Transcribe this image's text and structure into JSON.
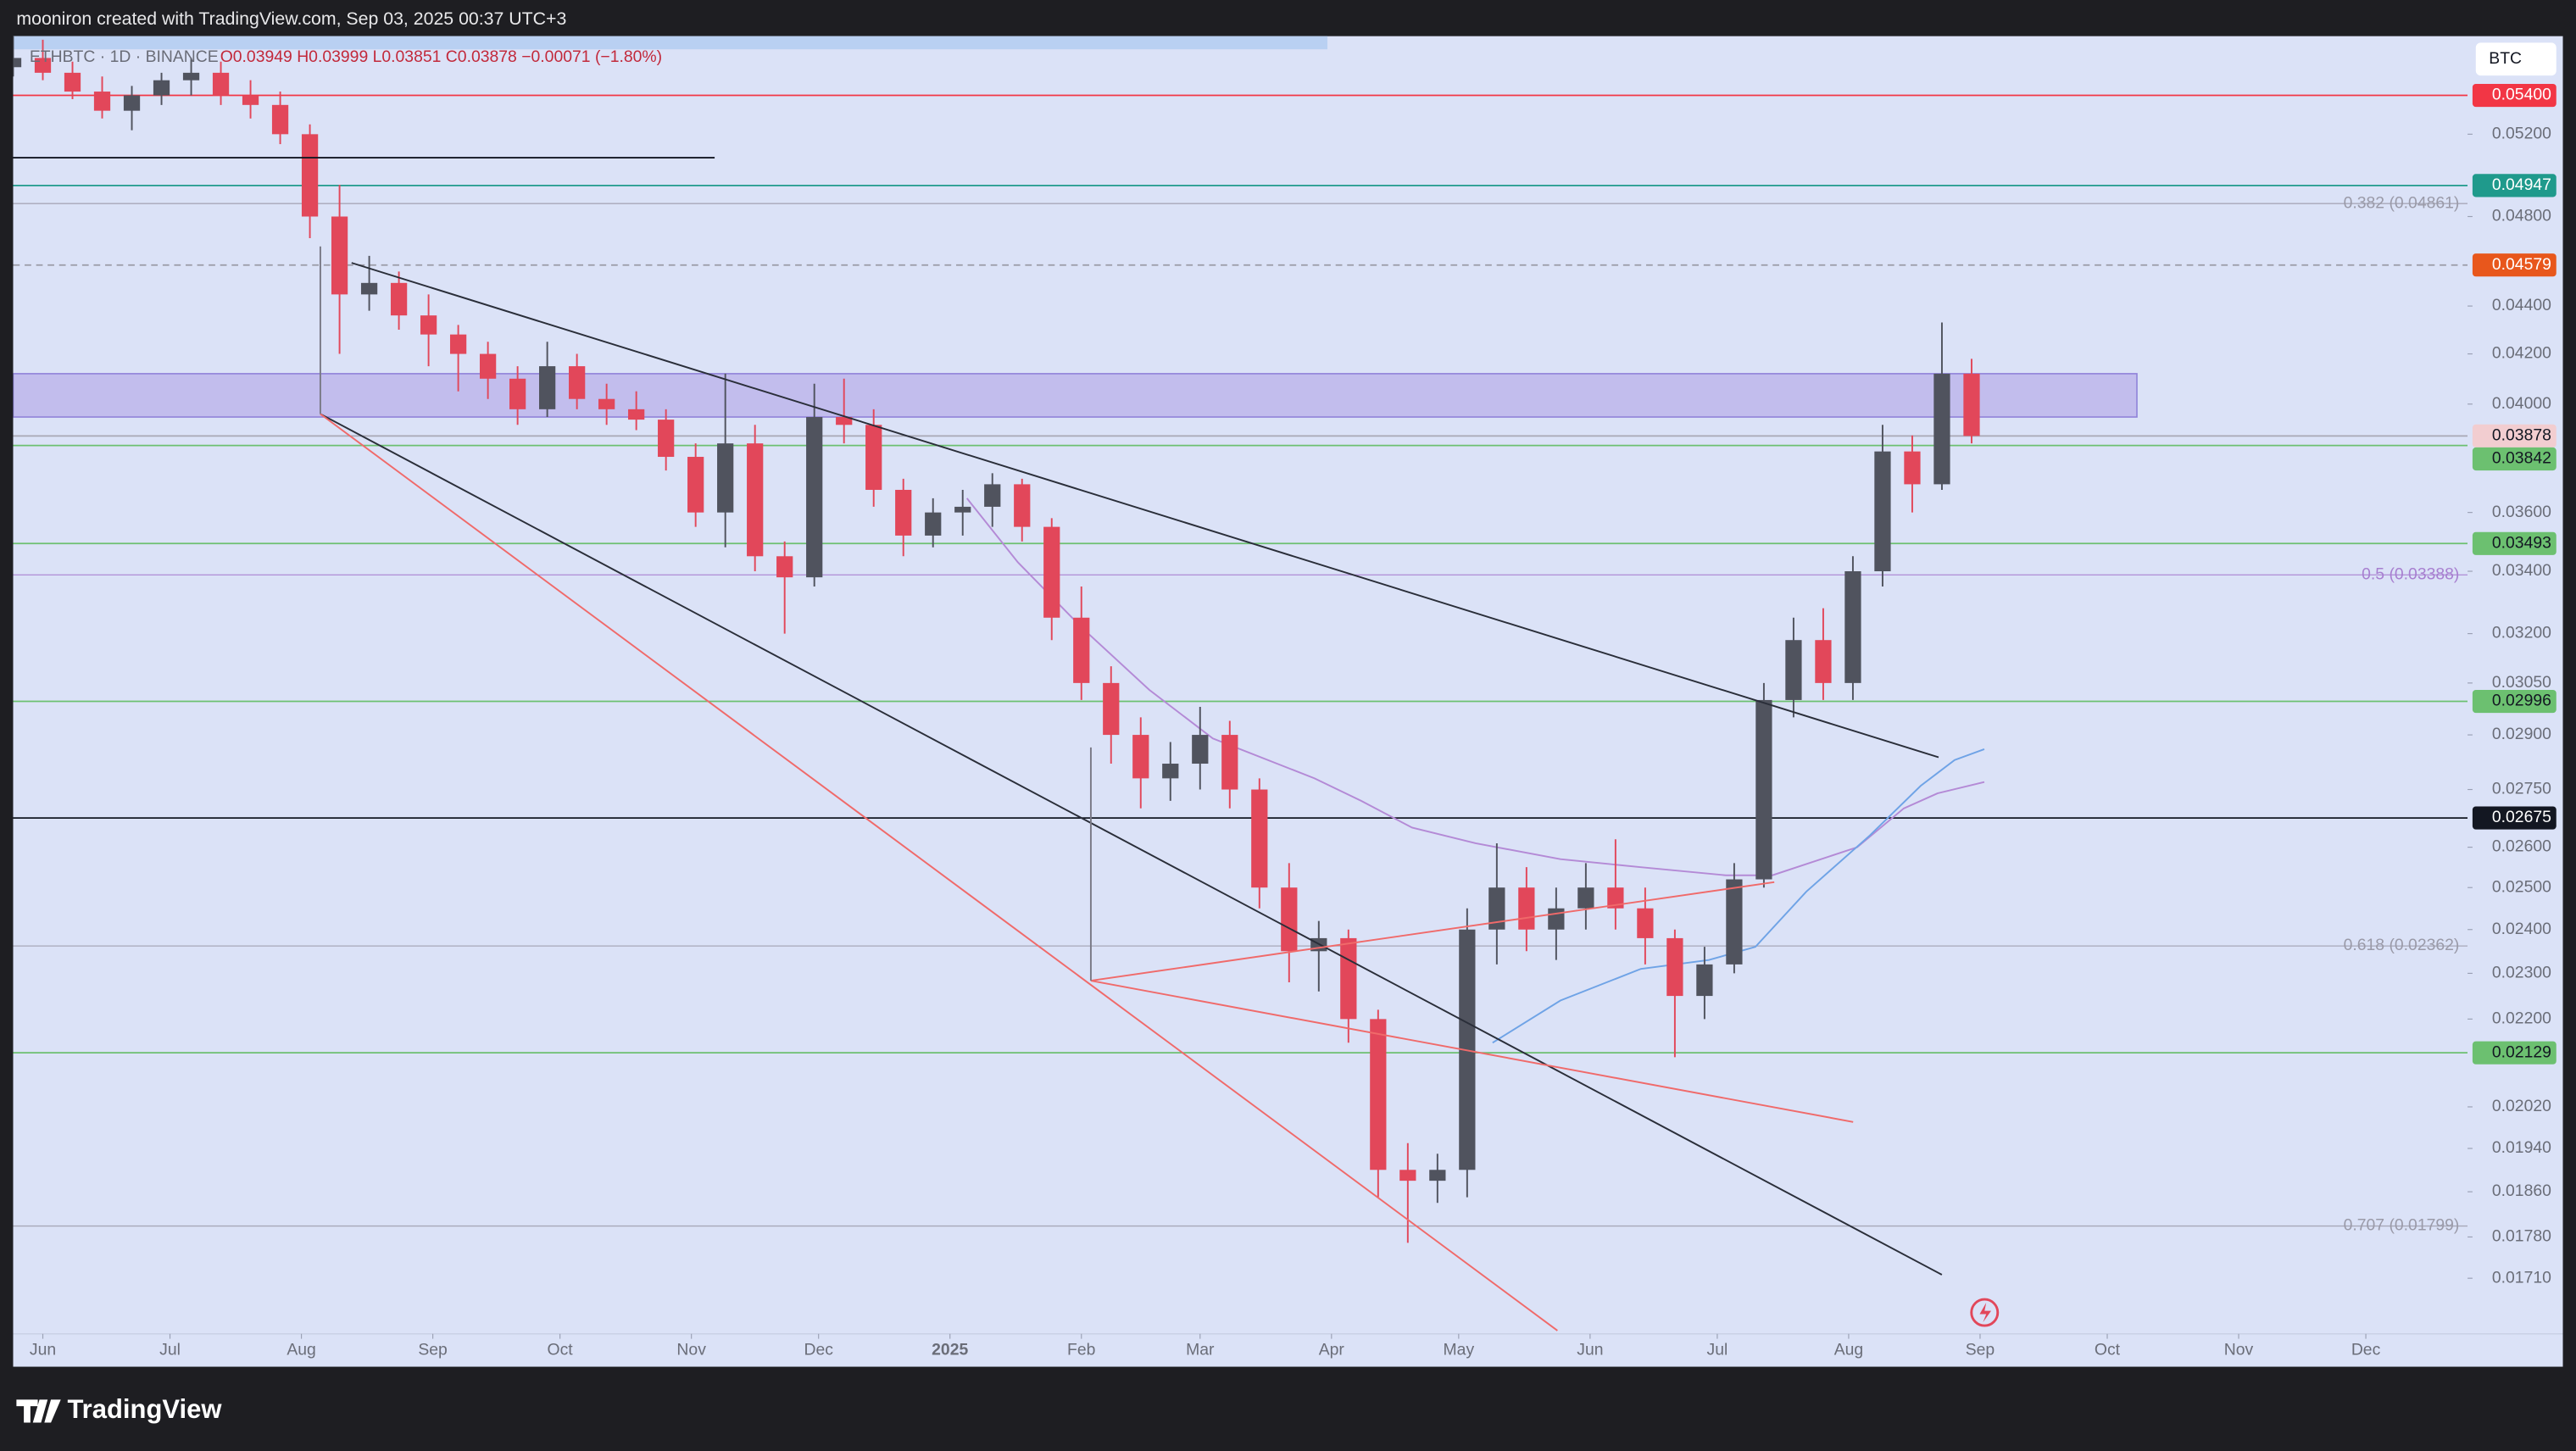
{
  "header": {
    "credit": "mooniron created with TradingView.com, Sep 03, 2025 00:37 UTC+3",
    "brand": "TradingView"
  },
  "chart_data": {
    "type": "candlestick",
    "symbol": "ETHBTC · 1D · BINANCE",
    "ohlc_label": "O0.03949 H0.03999 L0.03851 C0.03878 −0.00071 (−1.80%)",
    "currency": "BTC",
    "up_color": "#50535e",
    "down_color": "#e2475a",
    "x": [
      -7,
      0,
      7,
      14,
      21,
      28,
      35,
      42,
      49,
      56,
      63,
      70,
      77,
      84,
      91,
      98,
      105,
      112,
      119,
      126,
      133,
      140,
      147,
      154,
      161,
      168,
      175,
      182,
      189,
      196,
      203,
      210,
      217,
      224,
      231,
      238,
      245,
      252,
      259,
      266,
      273,
      280,
      287,
      294,
      301,
      308,
      315,
      322,
      329,
      336,
      343,
      350,
      357,
      364,
      371,
      378,
      385,
      392,
      399,
      406,
      413,
      420,
      427,
      434,
      441,
      448,
      455
    ],
    "open": [
      0.0555,
      0.056,
      0.0552,
      0.0542,
      0.0532,
      0.054,
      0.0548,
      0.0552,
      0.054,
      0.0535,
      0.052,
      0.048,
      0.0445,
      0.045,
      0.0436,
      0.0428,
      0.042,
      0.041,
      0.0398,
      0.0415,
      0.0402,
      0.0398,
      0.0394,
      0.038,
      0.036,
      0.0385,
      0.0345,
      0.0338,
      0.0395,
      0.0392,
      0.0368,
      0.0352,
      0.036,
      0.0362,
      0.037,
      0.0355,
      0.0325,
      0.0305,
      0.029,
      0.0278,
      0.0282,
      0.029,
      0.0275,
      0.025,
      0.0235,
      0.0238,
      0.022,
      0.019,
      0.0188,
      0.019,
      0.024,
      0.025,
      0.024,
      0.0245,
      0.025,
      0.0245,
      0.0238,
      0.0225,
      0.0232,
      0.0252,
      0.03,
      0.0318,
      0.0305,
      0.034,
      0.0382,
      0.037,
      0.0412
    ],
    "high": [
      0.0572,
      0.057,
      0.0558,
      0.055,
      0.0545,
      0.0552,
      0.056,
      0.0558,
      0.0548,
      0.0542,
      0.0525,
      0.0495,
      0.0462,
      0.0455,
      0.0445,
      0.0432,
      0.0425,
      0.0415,
      0.0425,
      0.042,
      0.0408,
      0.0405,
      0.0398,
      0.0385,
      0.0412,
      0.0392,
      0.035,
      0.0408,
      0.041,
      0.0398,
      0.0372,
      0.0365,
      0.0368,
      0.0374,
      0.0372,
      0.0358,
      0.0335,
      0.031,
      0.0295,
      0.0288,
      0.0298,
      0.0294,
      0.0278,
      0.0256,
      0.0242,
      0.024,
      0.0222,
      0.0195,
      0.0193,
      0.0245,
      0.0261,
      0.0255,
      0.025,
      0.0256,
      0.0262,
      0.025,
      0.024,
      0.0236,
      0.0256,
      0.0305,
      0.0325,
      0.0328,
      0.0345,
      0.0392,
      0.0388,
      0.0433,
      0.0418
    ],
    "low": [
      0.055,
      0.0548,
      0.0538,
      0.0528,
      0.0522,
      0.0535,
      0.054,
      0.0535,
      0.0528,
      0.0515,
      0.047,
      0.042,
      0.0438,
      0.043,
      0.0415,
      0.0405,
      0.0402,
      0.0392,
      0.0395,
      0.0398,
      0.0392,
      0.039,
      0.0375,
      0.0355,
      0.0348,
      0.034,
      0.032,
      0.0335,
      0.0385,
      0.0362,
      0.0345,
      0.0348,
      0.0352,
      0.0355,
      0.035,
      0.0318,
      0.03,
      0.0282,
      0.027,
      0.0272,
      0.0275,
      0.027,
      0.0245,
      0.0228,
      0.0226,
      0.0215,
      0.0185,
      0.0177,
      0.0184,
      0.0185,
      0.0232,
      0.0235,
      0.0233,
      0.024,
      0.024,
      0.0232,
      0.0212,
      0.022,
      0.023,
      0.025,
      0.0295,
      0.03,
      0.03,
      0.0335,
      0.036,
      0.0368,
      0.0385
    ],
    "close": [
      0.056,
      0.0552,
      0.0542,
      0.0532,
      0.054,
      0.0548,
      0.0552,
      0.054,
      0.0535,
      0.052,
      0.048,
      0.0445,
      0.045,
      0.0436,
      0.0428,
      0.042,
      0.041,
      0.0398,
      0.0415,
      0.0402,
      0.0398,
      0.0394,
      0.038,
      0.036,
      0.0385,
      0.0345,
      0.0338,
      0.0395,
      0.0392,
      0.0368,
      0.0352,
      0.036,
      0.0362,
      0.037,
      0.0355,
      0.0325,
      0.0305,
      0.029,
      0.0278,
      0.0282,
      0.029,
      0.0275,
      0.025,
      0.0235,
      0.0238,
      0.022,
      0.019,
      0.0188,
      0.019,
      0.024,
      0.025,
      0.024,
      0.0245,
      0.025,
      0.0245,
      0.0238,
      0.0225,
      0.0232,
      0.0252,
      0.03,
      0.0318,
      0.0305,
      0.034,
      0.0382,
      0.037,
      0.0412,
      0.03878
    ],
    "xlim": [
      -7,
      572
    ],
    "xticks": [
      {
        "value": 0,
        "label": "Jun"
      },
      {
        "value": 30,
        "label": "Jul"
      },
      {
        "value": 61,
        "label": "Aug"
      },
      {
        "value": 92,
        "label": "Sep"
      },
      {
        "value": 122,
        "label": "Oct"
      },
      {
        "value": 153,
        "label": "Nov"
      },
      {
        "value": 183,
        "label": "Dec"
      },
      {
        "value": 214,
        "label": "2025"
      },
      {
        "value": 245,
        "label": "Feb"
      },
      {
        "value": 273,
        "label": "Mar"
      },
      {
        "value": 304,
        "label": "Apr"
      },
      {
        "value": 334,
        "label": "May"
      },
      {
        "value": 365,
        "label": "Jun"
      },
      {
        "value": 395,
        "label": "Jul"
      },
      {
        "value": 426,
        "label": "Aug"
      },
      {
        "value": 457,
        "label": "Sep"
      },
      {
        "value": 487,
        "label": "Oct"
      },
      {
        "value": 518,
        "label": "Nov"
      },
      {
        "value": 548,
        "label": "Dec"
      }
    ],
    "ylim": [
      0.0162,
      0.0572
    ],
    "log_scale": true,
    "grid": false,
    "yticks": [
      {
        "value": 0.052,
        "label": "0.05200"
      },
      {
        "value": 0.048,
        "label": "0.04800"
      },
      {
        "value": 0.044,
        "label": "0.04400"
      },
      {
        "value": 0.042,
        "label": "0.04200"
      },
      {
        "value": 0.04,
        "label": "0.04000"
      },
      {
        "value": 0.036,
        "label": "0.03600"
      },
      {
        "value": 0.034,
        "label": "0.03400"
      },
      {
        "value": 0.032,
        "label": "0.03200"
      },
      {
        "value": 0.0305,
        "label": "0.03050"
      },
      {
        "value": 0.029,
        "label": "0.02900"
      },
      {
        "value": 0.0275,
        "label": "0.02750"
      },
      {
        "value": 0.026,
        "label": "0.02600"
      },
      {
        "value": 0.025,
        "label": "0.02500"
      },
      {
        "value": 0.024,
        "label": "0.02400"
      },
      {
        "value": 0.023,
        "label": "0.02300"
      },
      {
        "value": 0.022,
        "label": "0.02200"
      },
      {
        "value": 0.0202,
        "label": "0.02020"
      },
      {
        "value": 0.0194,
        "label": "0.01940"
      },
      {
        "value": 0.0186,
        "label": "0.01860"
      },
      {
        "value": 0.0178,
        "label": "0.01780"
      },
      {
        "value": 0.0171,
        "label": "0.01710"
      }
    ],
    "moving_averages": [
      {
        "color": "#b48ad6",
        "x": [
          218,
          230,
          245,
          261,
          276,
          300,
          311,
          323,
          338,
          358,
          377,
          397,
          408,
          428,
          439,
          447,
          458
        ],
        "values": [
          0.0365,
          0.0343,
          0.0322,
          0.0303,
          0.0289,
          0.0278,
          0.0272,
          0.0265,
          0.0261,
          0.0257,
          0.0255,
          0.0253,
          0.0253,
          0.026,
          0.027,
          0.0274,
          0.0277
        ]
      },
      {
        "color": "#6fa3e6",
        "x": [
          342,
          358,
          377,
          393,
          404,
          416,
          431,
          443,
          451,
          458
        ],
        "values": [
          0.0215,
          0.0224,
          0.0231,
          0.0233,
          0.0236,
          0.0249,
          0.0263,
          0.0276,
          0.0283,
          0.0286
        ]
      }
    ],
    "levels": [
      {
        "value": 0.054,
        "label": "0.05400",
        "color": "#f23645",
        "text_color": "#ffffff",
        "line_color": "#f23645",
        "dashed": false
      },
      {
        "value": 0.04947,
        "label": "0.04947",
        "color": "#1f9a8c",
        "text_color": "#ffffff",
        "line_color": "#1f9a8c",
        "dashed": false
      },
      {
        "value": 0.04579,
        "label": "0.04579",
        "color": "#e8571c",
        "text_color": "#ffffff",
        "line_color": "#9a9aa6",
        "dashed": true
      },
      {
        "value": 0.03878,
        "label": "0.03878",
        "color": "#f2cdd0",
        "text_color": "#131722",
        "line_color": "#a8a8b4",
        "dashed": false
      },
      {
        "value": 0.03842,
        "label": "0.03842",
        "color": "#6cc070",
        "text_color": "#131722",
        "line_color": "#6cc070",
        "dashed": false
      },
      {
        "value": 0.03493,
        "label": "0.03493",
        "color": "#6cc070",
        "text_color": "#131722",
        "line_color": "#6cc070",
        "dashed": false
      },
      {
        "value": 0.02996,
        "label": "0.02996",
        "color": "#6cc070",
        "text_color": "#131722",
        "line_color": "#6cc070",
        "dashed": false
      },
      {
        "value": 0.02675,
        "label": "0.02675",
        "color": "#131722",
        "text_color": "#ffffff",
        "line_color": "#131722",
        "dashed": false
      },
      {
        "value": 0.02129,
        "label": "0.02129",
        "color": "#6cc070",
        "text_color": "#131722",
        "line_color": "#6cc070",
        "dashed": false
      }
    ],
    "fib_levels": [
      {
        "value": 0.04861,
        "label": "0.382 (0.04861)",
        "color": "#9a9aa8"
      },
      {
        "value": 0.03388,
        "label": "0.5 (0.03388)",
        "color": "#a77fd0"
      },
      {
        "value": 0.02362,
        "label": "0.618 (0.02362)",
        "color": "#9a9aa8"
      },
      {
        "value": 0.01799,
        "label": "0.707 (0.01799)",
        "color": "#9a9aa8"
      }
    ],
    "zone": {
      "low": 0.0395,
      "high": 0.0412,
      "x_end": 494,
      "color": "#b9b0ea"
    }
  }
}
